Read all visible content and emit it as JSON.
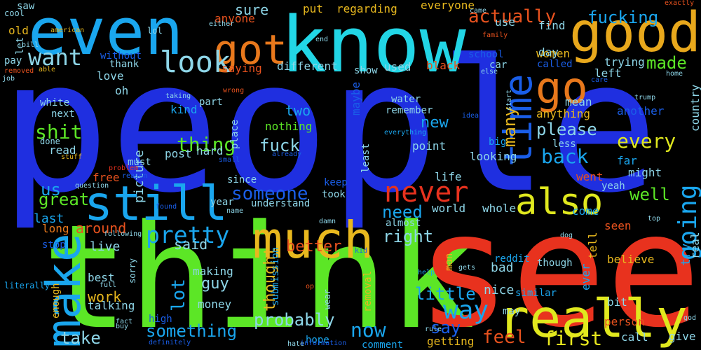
{
  "words": [
    {
      "text": "people",
      "color": "#1f2fe0"
    },
    {
      "text": "think",
      "color": "#5ce626"
    },
    {
      "text": "see",
      "color": "#e8321e"
    },
    {
      "text": "know",
      "color": "#22d6e6"
    },
    {
      "text": "even",
      "color": "#1aa6ee"
    },
    {
      "text": "good",
      "color": "#e8a81c"
    },
    {
      "text": "really",
      "color": "#e0e81e"
    },
    {
      "text": "much",
      "color": "#e8b81e"
    },
    {
      "text": "still",
      "color": "#1aa6ee"
    },
    {
      "text": "make",
      "color": "#1aa6ee"
    },
    {
      "text": "time",
      "color": "#1a5ee8"
    },
    {
      "text": "go",
      "color": "#e8781c"
    },
    {
      "text": "got",
      "color": "#e8781c"
    },
    {
      "text": "also",
      "color": "#e0e81e"
    },
    {
      "text": "never",
      "color": "#e8321e"
    },
    {
      "text": "look",
      "color": "#8ed6e8"
    },
    {
      "text": "want",
      "color": "#8ed6e8"
    },
    {
      "text": "going",
      "color": "#1aa6ee"
    },
    {
      "text": "way",
      "color": "#1aa6ee"
    },
    {
      "text": "pretty",
      "color": "#1aa6ee"
    },
    {
      "text": "actually",
      "color": "#e8521e"
    },
    {
      "text": "fucking",
      "color": "#1aa6ee"
    },
    {
      "text": "thing",
      "color": "#5ce626"
    },
    {
      "text": "shit",
      "color": "#5ce626"
    },
    {
      "text": "someone",
      "color": "#1a5ee8"
    },
    {
      "text": "every",
      "color": "#e0e81e"
    },
    {
      "text": "back",
      "color": "#1aa6ee"
    },
    {
      "text": "please",
      "color": "#8ed6e8"
    },
    {
      "text": "feel",
      "color": "#e8521e"
    },
    {
      "text": "first",
      "color": "#e8e81e"
    },
    {
      "text": "say",
      "color": "#1a5ee8"
    },
    {
      "text": "right",
      "color": "#8ed6e8"
    },
    {
      "text": "need",
      "color": "#1aa6ee"
    },
    {
      "text": "something",
      "color": "#1aa6ee"
    },
    {
      "text": "probably",
      "color": "#8ed6e8"
    },
    {
      "text": "take",
      "color": "#8ed6e8"
    },
    {
      "text": "now",
      "color": "#1aa6ee"
    },
    {
      "text": "fuck",
      "color": "#8ed6e8"
    },
    {
      "text": "made",
      "color": "#5ce626"
    },
    {
      "text": "well",
      "color": "#5ce626"
    },
    {
      "text": "many",
      "color": "#e8b81e"
    },
    {
      "text": "great",
      "color": "#5ce626"
    },
    {
      "text": "us",
      "color": "#1aa6ee"
    },
    {
      "text": "thought",
      "color": "#e8b81e"
    },
    {
      "text": "lot",
      "color": "#1aa6ee"
    },
    {
      "text": "better",
      "color": "#e8521e"
    },
    {
      "text": "little",
      "color": "#1aa6ee"
    },
    {
      "text": "said",
      "color": "#8ed6e8"
    },
    {
      "text": "work",
      "color": "#e8b81e"
    },
    {
      "text": "around",
      "color": "#e8521e"
    },
    {
      "text": "try",
      "color": "#1aa6ee"
    },
    {
      "text": "two",
      "color": "#1aa6ee"
    },
    {
      "text": "new",
      "color": "#1aa6ee"
    },
    {
      "text": "guy",
      "color": "#8ed6e8"
    },
    {
      "text": "last",
      "color": "#1aa6ee"
    },
    {
      "text": "live",
      "color": "#8ed6e8"
    },
    {
      "text": "long",
      "color": "#e8781c"
    },
    {
      "text": "picture",
      "color": "#8ed6e8"
    },
    {
      "text": "sure",
      "color": "#8ed6e8"
    },
    {
      "text": "put",
      "color": "#e8b81e"
    },
    {
      "text": "regarding",
      "color": "#e8b81e"
    },
    {
      "text": "everyone",
      "color": "#e8b81e"
    },
    {
      "text": "find",
      "color": "#8ed6e8"
    },
    {
      "text": "women",
      "color": "#e8b81e"
    },
    {
      "text": "use",
      "color": "#8ed6e8"
    },
    {
      "text": "day",
      "color": "#8ed6e8"
    },
    {
      "text": "trying",
      "color": "#8ed6e8"
    },
    {
      "text": "called",
      "color": "#1a5ee8"
    },
    {
      "text": "left",
      "color": "#8ed6e8"
    },
    {
      "text": "mean",
      "color": "#8ed6e8"
    },
    {
      "text": "anything",
      "color": "#e8b81e"
    },
    {
      "text": "another",
      "color": "#1a5ee8"
    },
    {
      "text": "country",
      "color": "#8ed6e8"
    },
    {
      "text": "less",
      "color": "#8ed6e8"
    },
    {
      "text": "far",
      "color": "#1aa6ee"
    },
    {
      "text": "might",
      "color": "#8ed6e8"
    },
    {
      "text": "went",
      "color": "#e8521e"
    },
    {
      "text": "yeah",
      "color": "#8ed6e8"
    },
    {
      "text": "seen",
      "color": "#e8521e"
    },
    {
      "text": "come",
      "color": "#1aa6ee"
    },
    {
      "text": "tell",
      "color": "#e8b81e"
    },
    {
      "text": "real",
      "color": "#8ed6e8"
    },
    {
      "text": "ever",
      "color": "#1aa6ee"
    },
    {
      "text": "believe",
      "color": "#e8b81e"
    },
    {
      "text": "similar",
      "color": "#1aa6ee"
    },
    {
      "text": "though",
      "color": "#8ed6e8"
    },
    {
      "text": "bit",
      "color": "#8ed6e8"
    },
    {
      "text": "person",
      "color": "#e8521e"
    },
    {
      "text": "give",
      "color": "#8ed6e8"
    },
    {
      "text": "call",
      "color": "#8ed6e8"
    },
    {
      "text": "may",
      "color": "#8ed6e8"
    },
    {
      "text": "nice",
      "color": "#8ed6e8"
    },
    {
      "text": "bad",
      "color": "#8ed6e8"
    },
    {
      "text": "whole",
      "color": "#8ed6e8"
    },
    {
      "text": "world",
      "color": "#8ed6e8"
    },
    {
      "text": "reddit",
      "color": "#1aa6ee"
    },
    {
      "text": "man",
      "color": "#e8b81e"
    },
    {
      "text": "getting",
      "color": "#e8b81e"
    },
    {
      "text": "comment",
      "color": "#1aa6ee"
    },
    {
      "text": "almost",
      "color": "#8ed6e8"
    },
    {
      "text": "understand",
      "color": "#8ed6e8"
    },
    {
      "text": "year",
      "color": "#8ed6e8"
    },
    {
      "text": "since",
      "color": "#8ed6e8"
    },
    {
      "text": "took",
      "color": "#8ed6e8"
    },
    {
      "text": "keep",
      "color": "#1a5ee8"
    },
    {
      "text": "life",
      "color": "#8ed6e8"
    },
    {
      "text": "looking",
      "color": "#8ed6e8"
    },
    {
      "text": "big",
      "color": "#1aa6ee"
    },
    {
      "text": "point",
      "color": "#8ed6e8"
    },
    {
      "text": "remember",
      "color": "#8ed6e8"
    },
    {
      "text": "water",
      "color": "#8ed6e8"
    },
    {
      "text": "maybe",
      "color": "#1a5ee8"
    },
    {
      "text": "least",
      "color": "#8ed6e8"
    },
    {
      "text": "nothing",
      "color": "#5ce626"
    },
    {
      "text": "post",
      "color": "#8ed6e8"
    },
    {
      "text": "hard",
      "color": "#8ed6e8"
    },
    {
      "text": "place",
      "color": "#8ed6e8"
    },
    {
      "text": "kind",
      "color": "#1aa6ee"
    },
    {
      "text": "part",
      "color": "#8ed6e8"
    },
    {
      "text": "saying",
      "color": "#e8521e"
    },
    {
      "text": "different",
      "color": "#8ed6e8"
    },
    {
      "text": "show",
      "color": "#8ed6e8"
    },
    {
      "text": "used",
      "color": "#8ed6e8"
    },
    {
      "text": "black",
      "color": "#e8521e"
    },
    {
      "text": "car",
      "color": "#8ed6e8"
    },
    {
      "text": "school",
      "color": "#1a5ee8"
    },
    {
      "text": "anyone",
      "color": "#e8521e"
    },
    {
      "text": "without",
      "color": "#1a5ee8"
    },
    {
      "text": "thank",
      "color": "#8ed6e8"
    },
    {
      "text": "love",
      "color": "#8ed6e8"
    },
    {
      "text": "oh",
      "color": "#8ed6e8"
    },
    {
      "text": "white",
      "color": "#8ed6e8"
    },
    {
      "text": "next",
      "color": "#8ed6e8"
    },
    {
      "text": "done",
      "color": "#8ed6e8"
    },
    {
      "text": "read",
      "color": "#8ed6e8"
    },
    {
      "text": "must",
      "color": "#8ed6e8"
    },
    {
      "text": "free",
      "color": "#e8521e"
    },
    {
      "text": "stop",
      "color": "#1a5ee8"
    },
    {
      "text": "best",
      "color": "#8ed6e8"
    },
    {
      "text": "sorry",
      "color": "#8ed6e8"
    },
    {
      "text": "talking",
      "color": "#8ed6e8"
    },
    {
      "text": "high",
      "color": "#1a5ee8"
    },
    {
      "text": "money",
      "color": "#8ed6e8"
    },
    {
      "text": "making",
      "color": "#8ed6e8"
    },
    {
      "text": "submission",
      "color": "#1aa6ee"
    },
    {
      "text": "removal",
      "color": "#e8b81e"
    },
    {
      "text": "wear",
      "color": "#8ed6e8"
    },
    {
      "text": "hope",
      "color": "#1aa6ee"
    },
    {
      "text": "enough",
      "color": "#e8b81e"
    },
    {
      "text": "let",
      "color": "#8ed6e8"
    },
    {
      "text": "old",
      "color": "#e8b81e"
    },
    {
      "text": "pay",
      "color": "#8ed6e8"
    },
    {
      "text": "saw",
      "color": "#8ed6e8"
    },
    {
      "text": "cool",
      "color": "#8ed6e8"
    },
    {
      "text": "american",
      "color": "#e8b81e"
    },
    {
      "text": "lol",
      "color": "#8ed6e8"
    },
    {
      "text": "either",
      "color": "#8ed6e8"
    },
    {
      "text": "end",
      "color": "#8ed6e8"
    },
    {
      "text": "came",
      "color": "#8ed6e8"
    },
    {
      "text": "exactly",
      "color": "#e8521e"
    },
    {
      "text": "family",
      "color": "#e8521e"
    },
    {
      "text": "else",
      "color": "#8ed6e8"
    },
    {
      "text": "home",
      "color": "#8ed6e8"
    },
    {
      "text": "care",
      "color": "#1a5ee8"
    },
    {
      "text": "bill",
      "color": "#8ed6e8"
    },
    {
      "text": "removed",
      "color": "#e8521e"
    },
    {
      "text": "able",
      "color": "#e8b81e"
    },
    {
      "text": "job",
      "color": "#8ed6e8"
    },
    {
      "text": "wrong",
      "color": "#e8521e"
    },
    {
      "text": "taking",
      "color": "#8ed6e8"
    },
    {
      "text": "idea",
      "color": "#1a5ee8"
    },
    {
      "text": "start",
      "color": "#8ed6e8"
    },
    {
      "text": "trump",
      "color": "#8ed6e8"
    },
    {
      "text": "everything",
      "color": "#1aa6ee"
    },
    {
      "text": "stuff",
      "color": "#e8b81e"
    },
    {
      "text": "small",
      "color": "#1a5ee8"
    },
    {
      "text": "already",
      "color": "#1a5ee8"
    },
    {
      "text": "problem",
      "color": "#e8321e"
    },
    {
      "text": "reason",
      "color": "#1a5ee8"
    },
    {
      "text": "question",
      "color": "#8ed6e8"
    },
    {
      "text": "found",
      "color": "#1a5ee8"
    },
    {
      "text": "name",
      "color": "#8ed6e8"
    },
    {
      "text": "damn",
      "color": "#8ed6e8"
    },
    {
      "text": "top",
      "color": "#8ed6e8"
    },
    {
      "text": "dog",
      "color": "#8ed6e8"
    },
    {
      "text": "kid",
      "color": "#1a5ee8"
    },
    {
      "text": "following",
      "color": "#8ed6e8"
    },
    {
      "text": "full",
      "color": "#8ed6e8"
    },
    {
      "text": "fact",
      "color": "#8ed6e8"
    },
    {
      "text": "buy",
      "color": "#8ed6e8"
    },
    {
      "text": "definitely",
      "color": "#1a5ee8"
    },
    {
      "text": "hate",
      "color": "#8ed6e8"
    },
    {
      "text": "information",
      "color": "#1a5ee8"
    },
    {
      "text": "rule",
      "color": "#8ed6e8"
    },
    {
      "text": "op",
      "color": "#e8521e"
    },
    {
      "text": "help",
      "color": "#1aa6ee"
    },
    {
      "text": "gets",
      "color": "#8ed6e8"
    },
    {
      "text": "god",
      "color": "#8ed6e8"
    },
    {
      "text": "literally",
      "color": "#1aa6ee"
    }
  ]
}
